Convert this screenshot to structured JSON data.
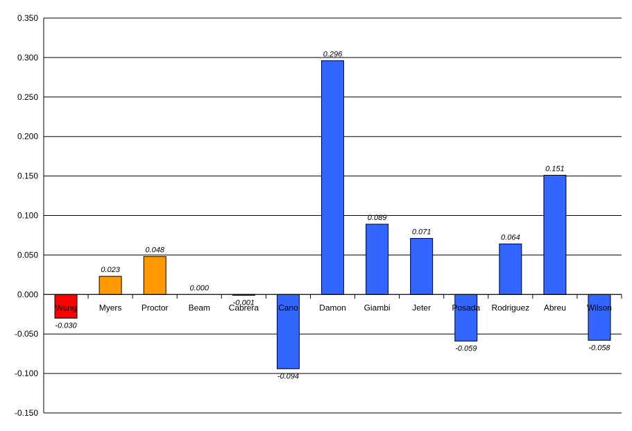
{
  "chart_data": {
    "type": "bar",
    "title": "",
    "xlabel": "",
    "ylabel": "",
    "categories": [
      "Wang",
      "Myers",
      "Proctor",
      "Beam",
      "Cabrera",
      "Cano",
      "Damon",
      "Giambi",
      "Jeter",
      "Posada",
      "Rodriguez",
      "Abreu",
      "Wilson"
    ],
    "values": [
      -0.03,
      0.023,
      0.048,
      0.0,
      -0.001,
      -0.094,
      0.296,
      0.089,
      0.071,
      -0.059,
      0.064,
      0.151,
      -0.058
    ],
    "value_labels": [
      "-0.030",
      "0.023",
      "0.048",
      "0.000",
      "-0.001",
      "-0.094",
      "0.296",
      "0.089",
      "0.071",
      "-0.059",
      "0.064",
      "0.151",
      "-0.058"
    ],
    "bar_colors": [
      "#ff0000",
      "#ff9900",
      "#ff9900",
      "#ff9900",
      "#3366ff",
      "#3366ff",
      "#3366ff",
      "#3366ff",
      "#3366ff",
      "#3366ff",
      "#3366ff",
      "#3366ff",
      "#3366ff"
    ],
    "ylim": [
      -0.15,
      0.35
    ],
    "yticks": [
      "0.350",
      "0.300",
      "0.250",
      "0.200",
      "0.150",
      "0.100",
      "0.050",
      "0.000",
      "-0.050",
      "-0.100",
      "-0.150"
    ],
    "grid": true,
    "legend": "none"
  }
}
